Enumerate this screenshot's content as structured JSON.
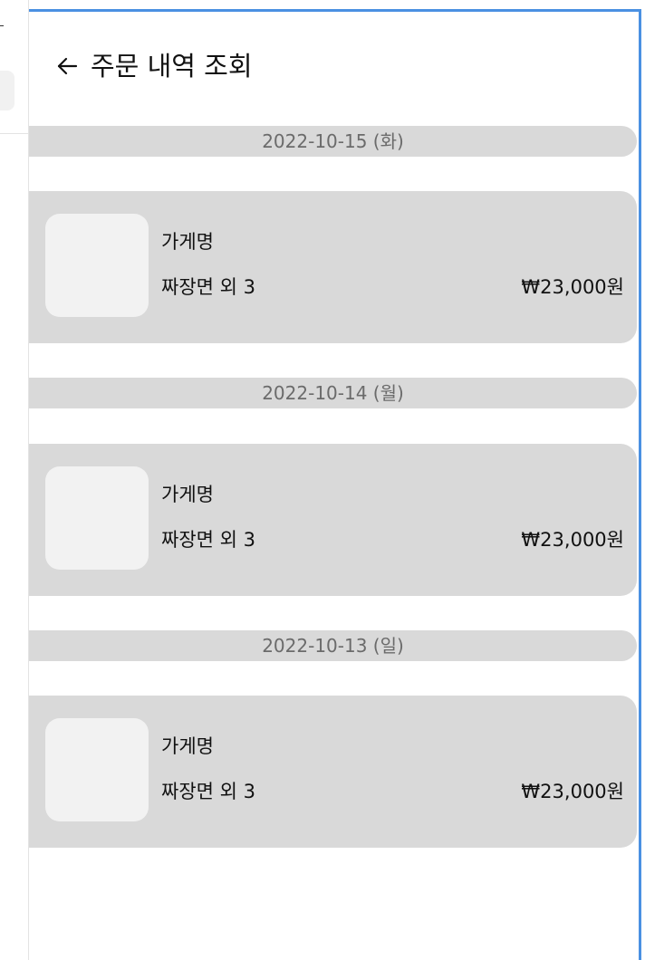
{
  "header": {
    "back_icon": "arrow-left-icon",
    "title": "주문 내역 조회"
  },
  "orders": [
    {
      "date": "2022-10-15 (화)",
      "store": "가게명",
      "summary": "짜장면 외 3",
      "price": "₩23,000원"
    },
    {
      "date": "2022-10-14 (월)",
      "store": "가게명",
      "summary": "짜장면 외 3",
      "price": "₩23,000원"
    },
    {
      "date": "2022-10-13 (일)",
      "store": "가게명",
      "summary": "짜장면 외 3",
      "price": "₩23,000원"
    }
  ],
  "colors": {
    "frame_border": "#4a90e2",
    "card_background": "#d9d9d9",
    "thumbnail_background": "#f2f2f2",
    "date_text": "#6b6b6b"
  }
}
